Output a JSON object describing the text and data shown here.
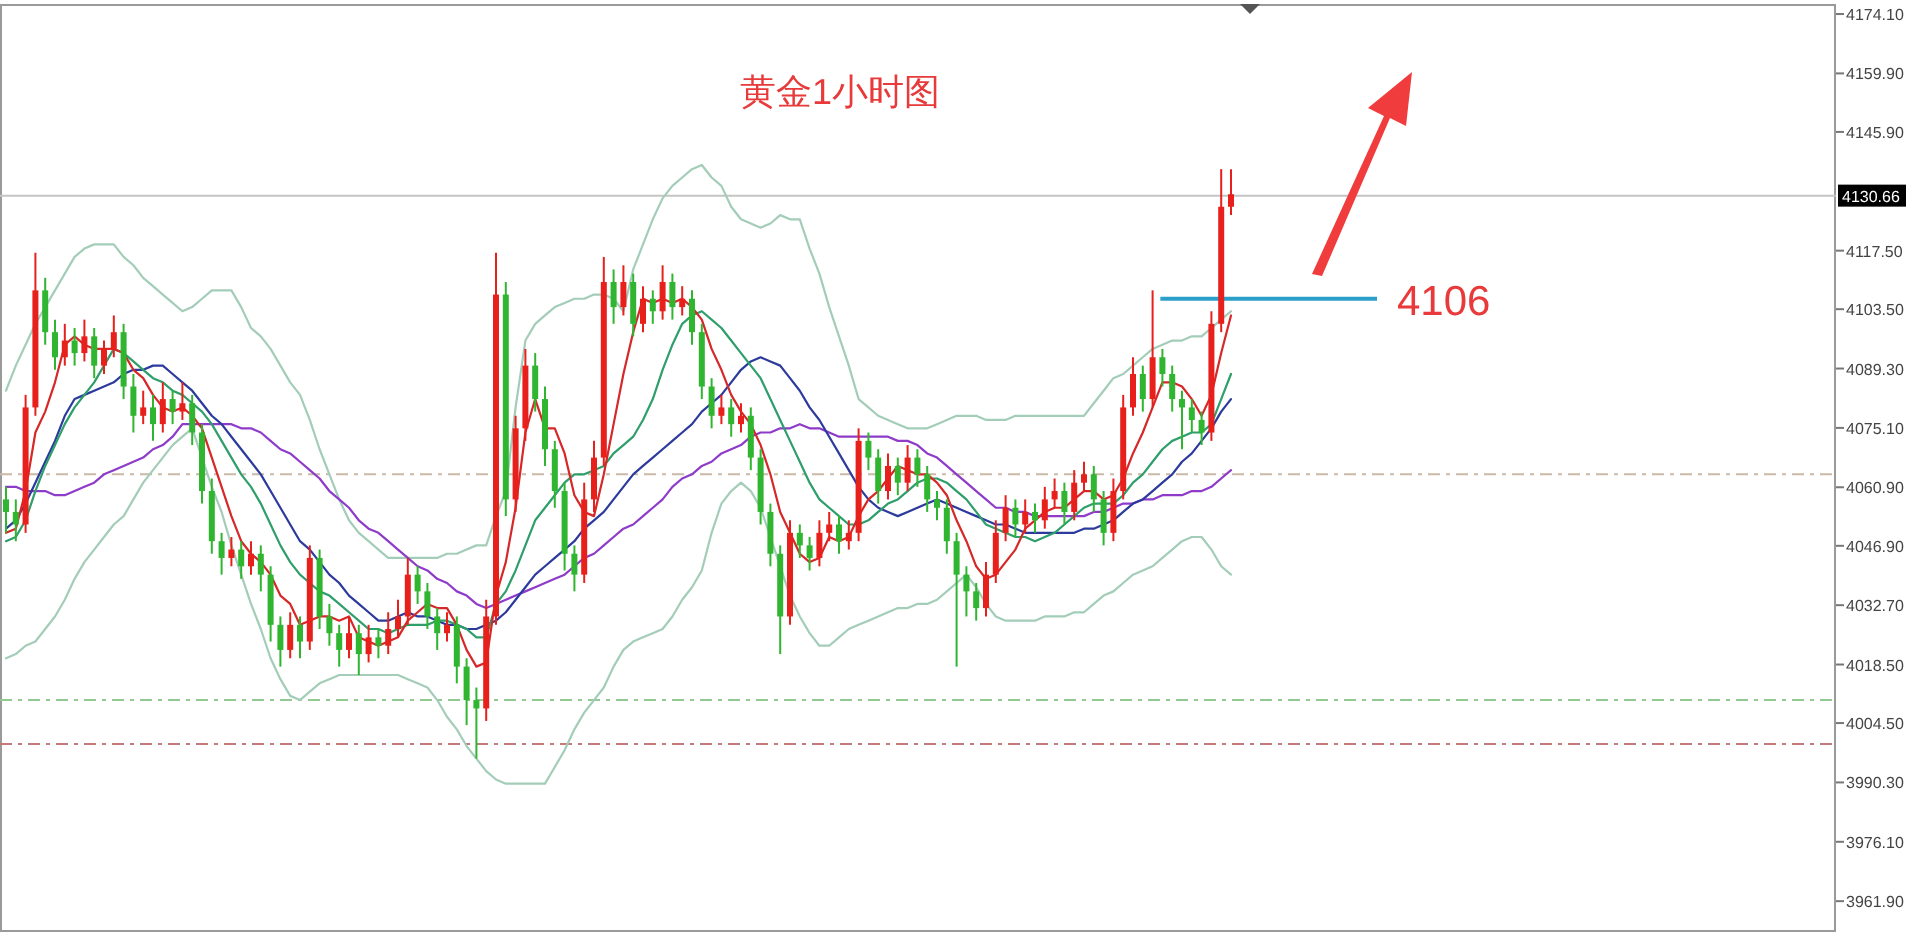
{
  "chart_data": {
    "type": "candlestick",
    "title": "黄金1小时图",
    "tick_labels": "y",
    "categories": [
      null,
      null,
      null,
      null,
      null,
      null,
      null,
      null,
      null,
      null,
      null,
      null,
      null,
      null,
      null,
      null,
      null,
      null,
      null,
      null,
      null,
      null,
      null,
      null,
      null,
      null,
      null,
      null,
      null,
      null,
      null,
      null,
      null,
      null,
      null,
      null,
      null,
      null,
      null,
      null,
      null,
      null,
      null,
      null,
      null,
      null,
      null,
      null,
      null,
      null,
      null,
      null,
      null,
      null,
      null,
      null,
      null,
      null,
      null,
      null,
      null,
      null,
      null,
      null,
      null,
      null,
      null,
      null,
      null,
      null,
      null,
      null,
      null,
      null,
      null,
      null,
      null,
      null,
      null,
      null,
      null,
      null,
      null,
      null,
      null,
      null,
      null,
      null,
      null,
      null,
      null,
      null,
      null,
      null,
      null,
      null,
      null,
      null,
      null,
      null,
      null,
      null,
      null,
      null,
      null,
      null,
      null,
      null,
      null,
      null,
      null,
      null,
      null,
      null,
      null,
      null,
      null,
      null,
      null,
      null,
      null,
      null,
      null,
      null,
      null,
      null
    ],
    "ohlc": [
      [
        4058,
        4061,
        4050,
        4055
      ],
      [
        4055,
        4058,
        4048,
        4052
      ],
      [
        4052,
        4083,
        4050,
        4080
      ],
      [
        4080,
        4117,
        4078,
        4108
      ],
      [
        4108,
        4111,
        4095,
        4098
      ],
      [
        4098,
        4101,
        4089,
        4092
      ],
      [
        4092,
        4100,
        4090,
        4096
      ],
      [
        4096,
        4099,
        4090,
        4093
      ],
      [
        4093,
        4101,
        4091,
        4097
      ],
      [
        4097,
        4099,
        4087,
        4090
      ],
      [
        4090,
        4096,
        4088,
        4094
      ],
      [
        4094,
        4102,
        4092,
        4098
      ],
      [
        4098,
        4100,
        4082,
        4085
      ],
      [
        4085,
        4088,
        4074,
        4078
      ],
      [
        4078,
        4084,
        4076,
        4080
      ],
      [
        4080,
        4083,
        4072,
        4076
      ],
      [
        4076,
        4086,
        4074,
        4082
      ],
      [
        4082,
        4084,
        4076,
        4079
      ],
      [
        4079,
        4086,
        4077,
        4081
      ],
      [
        4081,
        4083,
        4071,
        4074
      ],
      [
        4074,
        4076,
        4057,
        4060
      ],
      [
        4060,
        4063,
        4045,
        4048
      ],
      [
        4048,
        4050,
        4040,
        4044
      ],
      [
        4044,
        4049,
        4042,
        4046
      ],
      [
        4046,
        4048,
        4039,
        4042
      ],
      [
        4042,
        4048,
        4040,
        4045
      ],
      [
        4045,
        4047,
        4036,
        4040
      ],
      [
        4040,
        4042,
        4024,
        4028
      ],
      [
        4028,
        4030,
        4018,
        4022
      ],
      [
        4022,
        4031,
        4020,
        4028
      ],
      [
        4028,
        4030,
        4020,
        4024
      ],
      [
        4024,
        4047,
        4022,
        4044
      ],
      [
        4044,
        4046,
        4027,
        4030
      ],
      [
        4030,
        4033,
        4023,
        4026
      ],
      [
        4026,
        4028,
        4018,
        4022
      ],
      [
        4022,
        4030,
        4020,
        4026
      ],
      [
        4026,
        4028,
        4016,
        4021
      ],
      [
        4021,
        4028,
        4019,
        4025
      ],
      [
        4025,
        4027,
        4020,
        4023
      ],
      [
        4023,
        4031,
        4021,
        4027
      ],
      [
        4027,
        4034,
        4025,
        4030
      ],
      [
        4030,
        4044,
        4028,
        4040
      ],
      [
        4040,
        4042,
        4033,
        4036
      ],
      [
        4036,
        4038,
        4027,
        4030
      ],
      [
        4030,
        4032,
        4022,
        4026
      ],
      [
        4026,
        4031,
        4024,
        4028
      ],
      [
        4028,
        4030,
        4014,
        4018
      ],
      [
        4018,
        4020,
        4004,
        4010
      ],
      [
        4010,
        4013,
        3996,
        4008
      ],
      [
        4008,
        4034,
        4005,
        4030
      ],
      [
        4030,
        4117,
        4028,
        4107
      ],
      [
        4107,
        4110,
        4054,
        4058
      ],
      [
        4058,
        4078,
        4055,
        4075
      ],
      [
        4075,
        4094,
        4072,
        4090
      ],
      [
        4090,
        4093,
        4079,
        4082
      ],
      [
        4082,
        4085,
        4066,
        4070
      ],
      [
        4070,
        4072,
        4056,
        4060
      ],
      [
        4060,
        4062,
        4041,
        4045
      ],
      [
        4045,
        4047,
        4036,
        4040
      ],
      [
        4040,
        4062,
        4038,
        4058
      ],
      [
        4058,
        4072,
        4055,
        4068
      ],
      [
        4068,
        4116,
        4066,
        4110
      ],
      [
        4110,
        4113,
        4100,
        4104
      ],
      [
        4104,
        4114,
        4102,
        4110
      ],
      [
        4110,
        4112,
        4097,
        4100
      ],
      [
        4100,
        4109,
        4098,
        4106
      ],
      [
        4106,
        4108,
        4100,
        4103
      ],
      [
        4103,
        4114,
        4101,
        4110
      ],
      [
        4110,
        4112,
        4101,
        4104
      ],
      [
        4104,
        4109,
        4102,
        4106
      ],
      [
        4106,
        4108,
        4095,
        4098
      ],
      [
        4098,
        4100,
        4082,
        4085
      ],
      [
        4085,
        4087,
        4075,
        4078
      ],
      [
        4078,
        4083,
        4076,
        4080
      ],
      [
        4080,
        4082,
        4073,
        4076
      ],
      [
        4076,
        4081,
        4074,
        4078
      ],
      [
        4078,
        4080,
        4065,
        4068
      ],
      [
        4068,
        4070,
        4052,
        4055
      ],
      [
        4055,
        4057,
        4042,
        4045
      ],
      [
        4045,
        4047,
        4021,
        4030
      ],
      [
        4030,
        4053,
        4028,
        4050
      ],
      [
        4050,
        4052,
        4044,
        4047
      ],
      [
        4047,
        4049,
        4041,
        4044
      ],
      [
        4044,
        4053,
        4042,
        4050
      ],
      [
        4050,
        4055,
        4048,
        4052
      ],
      [
        4052,
        4054,
        4045,
        4048
      ],
      [
        4048,
        4053,
        4046,
        4050
      ],
      [
        4050,
        4075,
        4048,
        4072
      ],
      [
        4072,
        4074,
        4065,
        4068
      ],
      [
        4068,
        4070,
        4057,
        4060
      ],
      [
        4060,
        4069,
        4058,
        4066
      ],
      [
        4066,
        4068,
        4059,
        4062
      ],
      [
        4062,
        4071,
        4060,
        4068
      ],
      [
        4068,
        4070,
        4061,
        4064
      ],
      [
        4064,
        4066,
        4055,
        4058
      ],
      [
        4058,
        4060,
        4053,
        4056
      ],
      [
        4056,
        4058,
        4045,
        4048
      ],
      [
        4048,
        4050,
        4018,
        4040
      ],
      [
        4040,
        4042,
        4030,
        4036
      ],
      [
        4036,
        4038,
        4029,
        4032
      ],
      [
        4032,
        4043,
        4030,
        4040
      ],
      [
        4040,
        4053,
        4038,
        4050
      ],
      [
        4050,
        4059,
        4048,
        4056
      ],
      [
        4056,
        4058,
        4049,
        4052
      ],
      [
        4052,
        4058,
        4050,
        4055
      ],
      [
        4055,
        4057,
        4050,
        4053
      ],
      [
        4053,
        4061,
        4051,
        4058
      ],
      [
        4058,
        4063,
        4056,
        4060
      ],
      [
        4060,
        4062,
        4052,
        4055
      ],
      [
        4055,
        4065,
        4053,
        4062
      ],
      [
        4062,
        4067,
        4060,
        4064
      ],
      [
        4064,
        4066,
        4055,
        4058
      ],
      [
        4058,
        4060,
        4047,
        4050
      ],
      [
        4050,
        4063,
        4048,
        4060
      ],
      [
        4060,
        4083,
        4058,
        4080
      ],
      [
        4080,
        4092,
        4078,
        4088
      ],
      [
        4088,
        4090,
        4079,
        4082
      ],
      [
        4082,
        4108,
        4080,
        4092
      ],
      [
        4092,
        4094,
        4085,
        4088
      ],
      [
        4088,
        4090,
        4079,
        4082
      ],
      [
        4082,
        4084,
        4070,
        4080
      ],
      [
        4080,
        4082,
        4074,
        4077
      ],
      [
        4077,
        4079,
        4071,
        4074
      ],
      [
        4074,
        4103,
        4072,
        4100
      ],
      [
        4100,
        4137,
        4098,
        4128
      ],
      [
        4128,
        4137,
        4126,
        4131
      ]
    ],
    "colors": [
      "#2fb52f",
      "#2fb52f",
      "#e8201c",
      "#e8201c",
      "#2fb52f",
      "#2fb52f",
      "#e8201c",
      "#2fb52f",
      "#e8201c",
      "#2fb52f",
      "#e8201c",
      "#e8201c",
      "#2fb52f",
      "#2fb52f",
      "#e8201c",
      "#2fb52f",
      "#e8201c",
      "#2fb52f",
      "#e8201c",
      "#2fb52f",
      "#2fb52f",
      "#2fb52f",
      "#2fb52f",
      "#e8201c",
      "#2fb52f",
      "#e8201c",
      "#2fb52f",
      "#2fb52f",
      "#2fb52f",
      "#e8201c",
      "#2fb52f",
      "#e8201c",
      "#2fb52f",
      "#2fb52f",
      "#2fb52f",
      "#e8201c",
      "#2fb52f",
      "#e8201c",
      "#2fb52f",
      "#e8201c",
      "#e8201c",
      "#e8201c",
      "#2fb52f",
      "#2fb52f",
      "#2fb52f",
      "#e8201c",
      "#2fb52f",
      "#2fb52f",
      "#2fb52f",
      "#e8201c",
      "#e8201c",
      "#2fb52f",
      "#e8201c",
      "#e8201c",
      "#2fb52f",
      "#2fb52f",
      "#2fb52f",
      "#2fb52f",
      "#2fb52f",
      "#e8201c",
      "#e8201c",
      "#e8201c",
      "#2fb52f",
      "#e8201c",
      "#2fb52f",
      "#e8201c",
      "#2fb52f",
      "#e8201c",
      "#2fb52f",
      "#e8201c",
      "#2fb52f",
      "#2fb52f",
      "#2fb52f",
      "#e8201c",
      "#2fb52f",
      "#e8201c",
      "#2fb52f",
      "#2fb52f",
      "#2fb52f",
      "#2fb52f",
      "#e8201c",
      "#2fb52f",
      "#2fb52f",
      "#e8201c",
      "#e8201c",
      "#2fb52f",
      "#e8201c",
      "#e8201c",
      "#2fb52f",
      "#2fb52f",
      "#e8201c",
      "#2fb52f",
      "#e8201c",
      "#2fb52f",
      "#2fb52f",
      "#2fb52f",
      "#2fb52f",
      "#2fb52f",
      "#2fb52f",
      "#2fb52f",
      "#e8201c",
      "#e8201c",
      "#e8201c",
      "#2fb52f",
      "#e8201c",
      "#2fb52f",
      "#e8201c",
      "#e8201c",
      "#2fb52f",
      "#e8201c",
      "#e8201c",
      "#2fb52f",
      "#2fb52f",
      "#e8201c",
      "#e8201c",
      "#e8201c",
      "#2fb52f",
      "#e8201c",
      "#2fb52f",
      "#2fb52f",
      "#2fb52f",
      "#2fb52f",
      "#2fb52f",
      "#e8201c",
      "#e8201c",
      "#e8201c"
    ],
    "series": [
      {
        "type": "line",
        "color": "#a3cdb8",
        "values": [
          4084,
          4090,
          4095,
          4100,
          4104,
          4108,
          4112,
          4116,
          4118,
          4119,
          4119,
          4119,
          4116,
          4114,
          4111,
          4109,
          4107,
          4105,
          4103,
          4104,
          4106,
          4108,
          4108,
          4108,
          4104,
          4099,
          4097,
          4094,
          4090,
          4086,
          4083,
          4077,
          4070,
          4064,
          4058,
          4053,
          4050,
          4048,
          4046,
          4044,
          4044,
          4044,
          4044,
          4044,
          4044,
          4045,
          4045,
          4046,
          4047,
          4047,
          4054,
          4060,
          4080,
          4096,
          4100,
          4102,
          4104,
          4105,
          4106,
          4106,
          4107,
          4107,
          4106,
          4103,
          4113,
          4119,
          4125,
          4130,
          4133,
          4135,
          4137,
          4138,
          4135,
          4133,
          4128,
          4125,
          4124,
          4123,
          4124,
          4126,
          4125,
          4125,
          4118,
          4112,
          4104,
          4097,
          4090,
          4082,
          4080,
          4078,
          4077,
          4076,
          4075,
          4075,
          4075,
          4076,
          4077,
          4078,
          4078,
          4078,
          4077,
          4077,
          4077,
          4078,
          4078,
          4078,
          4078,
          4078,
          4078,
          4078,
          4078,
          4081,
          4084,
          4087,
          4088,
          4090,
          4092,
          4094,
          4095,
          4096,
          4096,
          4097,
          4097,
          4099,
          4101,
          4103
        ]
      },
      {
        "type": "line",
        "color": "#a3cdb8",
        "values": [
          4020,
          4021,
          4023,
          4024,
          4027,
          4030,
          4034,
          4039,
          4043,
          4046,
          4049,
          4052,
          4054,
          4058,
          4062,
          4065,
          4068,
          4071,
          4073,
          4075,
          4068,
          4061,
          4055,
          4047,
          4040,
          4033,
          4027,
          4020,
          4015,
          4011,
          4010,
          4012,
          4014,
          4015,
          4016,
          4016,
          4016,
          4016,
          4016,
          4016,
          4016,
          4015,
          4014,
          4013,
          4010,
          4006,
          4003,
          3999,
          3996,
          3993,
          3991,
          3990,
          3990,
          3990,
          3990,
          3990,
          3994,
          3998,
          4003,
          4007,
          4010,
          4013,
          4018,
          4022,
          4024,
          4025,
          4026,
          4027,
          4030,
          4034,
          4037,
          4041,
          4050,
          4057,
          4060,
          4062,
          4060,
          4056,
          4049,
          4042,
          4035,
          4030,
          4026,
          4023,
          4023,
          4025,
          4027,
          4028,
          4029,
          4030,
          4031,
          4032,
          4032,
          4033,
          4033,
          4034,
          4036,
          4038,
          4040,
          4037,
          4033,
          4030,
          4029,
          4029,
          4029,
          4029,
          4030,
          4030,
          4030,
          4031,
          4031,
          4033,
          4035,
          4036,
          4038,
          4040,
          4041,
          4042,
          4044,
          4046,
          4048,
          4049,
          4049,
          4046,
          4042,
          4040
        ]
      },
      {
        "type": "line",
        "color": "#8e3bc9",
        "values": [
          4061,
          4061,
          4060,
          4060,
          4060,
          4059,
          4059,
          4060,
          4061,
          4062,
          4064,
          4065,
          4066,
          4067,
          4068,
          4070,
          4071,
          4073,
          4076,
          4076,
          4076,
          4076,
          4076,
          4076,
          4075,
          4075,
          4074,
          4072,
          4070,
          4069,
          4067,
          4065,
          4063,
          4060,
          4058,
          4056,
          4053,
          4051,
          4050,
          4048,
          4046,
          4044,
          4042,
          4041,
          4039,
          4038,
          4036,
          4035,
          4033,
          4032,
          4033,
          4034,
          4035,
          4036,
          4037,
          4038,
          4039,
          4040,
          4042,
          4044,
          4045,
          4047,
          4049,
          4051,
          4052,
          4054,
          4056,
          4058,
          4061,
          4063,
          4064,
          4066,
          4067,
          4069,
          4070,
          4071,
          4073,
          4074,
          4074,
          4075,
          4075,
          4076,
          4075,
          4075,
          4074,
          4073,
          4073,
          4073,
          4073,
          4073,
          4073,
          4072,
          4072,
          4071,
          4069,
          4068,
          4066,
          4064,
          4062,
          4060,
          4058,
          4056,
          4056,
          4055,
          4055,
          4054,
          4054,
          4054,
          4054,
          4054,
          4054,
          4055,
          4055,
          4056,
          4057,
          4057,
          4058,
          4058,
          4059,
          4059,
          4059,
          4060,
          4060,
          4061,
          4063,
          4065
        ]
      },
      {
        "type": "line",
        "color": "#2b3a9c",
        "values": [
          4051,
          4053,
          4057,
          4062,
          4067,
          4072,
          4078,
          4082,
          4083,
          4084,
          4085,
          4086,
          4088,
          4089,
          4089,
          4090,
          4090,
          4088,
          4086,
          4084,
          4081,
          4078,
          4076,
          4073,
          4070,
          4067,
          4064,
          4060,
          4056,
          4052,
          4048,
          4046,
          4043,
          4040,
          4038,
          4035,
          4033,
          4031,
          4029,
          4029,
          4030,
          4031,
          4030,
          4030,
          4029,
          4028,
          4028,
          4027,
          4027,
          4028,
          4029,
          4031,
          4034,
          4037,
          4040,
          4042,
          4044,
          4046,
          4048,
          4051,
          4053,
          4055,
          4058,
          4061,
          4064,
          4066,
          4068,
          4070,
          4072,
          4074,
          4076,
          4079,
          4081,
          4083,
          4086,
          4089,
          4091,
          4092,
          4091,
          4090,
          4087,
          4084,
          4080,
          4077,
          4073,
          4069,
          4065,
          4061,
          4058,
          4056,
          4055,
          4054,
          4055,
          4056,
          4057,
          4058,
          4057,
          4056,
          4055,
          4054,
          4053,
          4052,
          4052,
          4051,
          4050,
          4050,
          4050,
          4050,
          4050,
          4050,
          4051,
          4051,
          4052,
          4053,
          4055,
          4057,
          4058,
          4060,
          4062,
          4064,
          4067,
          4069,
          4072,
          4075,
          4079,
          4082
        ]
      },
      {
        "type": "line",
        "color": "#2e9e6a",
        "values": [
          4048,
          4049,
          4053,
          4060,
          4066,
          4071,
          4076,
          4080,
          4083,
          4086,
          4090,
          4094,
          4093,
          4091,
          4089,
          4087,
          4086,
          4084,
          4083,
          4081,
          4079,
          4076,
          4072,
          4068,
          4064,
          4061,
          4057,
          4052,
          4047,
          4043,
          4040,
          4038,
          4036,
          4035,
          4033,
          4031,
          4029,
          4027,
          4027,
          4026,
          4027,
          4028,
          4028,
          4028,
          4029,
          4029,
          4028,
          4027,
          4025,
          4025,
          4033,
          4036,
          4041,
          4047,
          4053,
          4056,
          4059,
          4062,
          4064,
          4064,
          4065,
          4066,
          4069,
          4071,
          4073,
          4077,
          4082,
          4089,
          4095,
          4100,
          4102,
          4103,
          4101,
          4099,
          4096,
          4093,
          4090,
          4087,
          4082,
          4077,
          4072,
          4067,
          4062,
          4058,
          4056,
          4054,
          4052,
          4052,
          4053,
          4055,
          4057,
          4058,
          4060,
          4062,
          4063,
          4063,
          4062,
          4060,
          4058,
          4055,
          4052,
          4051,
          4050,
          4049,
          4049,
          4048,
          4049,
          4050,
          4052,
          4054,
          4056,
          4057,
          4057,
          4057,
          4059,
          4062,
          4064,
          4067,
          4070,
          4072,
          4073,
          4074,
          4074,
          4076,
          4082,
          4088
        ]
      },
      {
        "type": "line",
        "color": "#d62828",
        "values": [
          4050,
          4051,
          4060,
          4074,
          4079,
          4086,
          4095,
          4097,
          4095,
          4094,
          4094,
          4094,
          4093,
          4089,
          4087,
          4083,
          4080,
          4079,
          4080,
          4078,
          4075,
          4068,
          4061,
          4054,
          4048,
          4045,
          4043,
          4040,
          4035,
          4033,
          4028,
          4029,
          4030,
          4030,
          4029,
          4030,
          4025,
          4024,
          4023,
          4024,
          4025,
          4029,
          4031,
          4033,
          4032,
          4032,
          4028,
          4022,
          4018,
          4019,
          4035,
          4043,
          4056,
          4074,
          4082,
          4075,
          4075,
          4069,
          4059,
          4055,
          4054,
          4064,
          4076,
          4088,
          4098,
          4106,
          4105,
          4106,
          4105,
          4106,
          4104,
          4101,
          4094,
          4089,
          4083,
          4079,
          4076,
          4071,
          4064,
          4055,
          4050,
          4045,
          4043,
          4044,
          4049,
          4048,
          4049,
          4054,
          4058,
          4060,
          4063,
          4066,
          4065,
          4064,
          4064,
          4062,
          4059,
          4053,
          4048,
          4042,
          4039,
          4040,
          4043,
          4046,
          4051,
          4053,
          4055,
          4056,
          4056,
          4058,
          4060,
          4060,
          4058,
          4059,
          4063,
          4069,
          4074,
          4080,
          4086,
          4086,
          4085,
          4082,
          4078,
          4083,
          4093,
          4102
        ]
      }
    ],
    "ylim": [
      3955.0,
      4176.5
    ],
    "yticks": [
      {
        "value": 4174.1,
        "label": "4174.10"
      },
      {
        "value": 4159.9,
        "label": "4159.90"
      },
      {
        "value": 4145.9,
        "label": "4145.90"
      },
      {
        "value": 4117.5,
        "label": "4117.50"
      },
      {
        "value": 4103.5,
        "label": "4103.50"
      },
      {
        "value": 4089.3,
        "label": "4089.30"
      },
      {
        "value": 4075.1,
        "label": "4075.10"
      },
      {
        "value": 4060.9,
        "label": "4060.90"
      },
      {
        "value": 4046.9,
        "label": "4046.90"
      },
      {
        "value": 4032.7,
        "label": "4032.70"
      },
      {
        "value": 4018.5,
        "label": "4018.50"
      },
      {
        "value": 4004.5,
        "label": "4004.50"
      },
      {
        "value": 3990.3,
        "label": "3990.30"
      },
      {
        "value": 3976.1,
        "label": "3976.10"
      },
      {
        "value": 3961.9,
        "label": "3961.90"
      }
    ],
    "ref_lines": [
      {
        "axis": "y",
        "value": 4130.66,
        "label": "4130.66",
        "color": "#c4c4c4",
        "line_style": "solid"
      },
      {
        "axis": "y",
        "value": 4064,
        "color": "#c9b9a6",
        "line_style": "dashed"
      },
      {
        "axis": "y",
        "value": 4010,
        "color": "#92c892",
        "line_style": "dashed"
      },
      {
        "axis": "y",
        "value": 3999.5,
        "color": "#c47a7a",
        "line_style": "dashed"
      },
      {
        "axis": "y",
        "value": 4106,
        "label": "4106",
        "color": "#2c9fc9",
        "line_style": "solid"
      }
    ]
  }
}
